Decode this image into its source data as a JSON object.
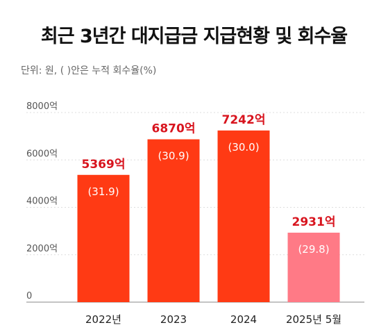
{
  "header": {
    "title": "최근 3년간 대지급금 지급현황 및 회수율",
    "unit_note": "단위: 원, (   )안은 누적 회수율(%)"
  },
  "colors": {
    "bar": "#ff3a14",
    "bar_partial": "#ff7a86",
    "value_label": "#d8141e",
    "axis": "#888888",
    "grid": "#dddddd"
  },
  "chart_data": {
    "type": "bar",
    "categories": [
      "2022년",
      "2023",
      "2024",
      "2025년 5월"
    ],
    "values": [
      5369,
      6870,
      7242,
      2931
    ],
    "value_labels": [
      "5369억",
      "6870억",
      "7242억",
      "2931억"
    ],
    "recovery_rates": [
      "(31.9)",
      "(30.9)",
      "(30.0)",
      "(29.8)"
    ],
    "yticks": [
      0,
      2000,
      4000,
      6000,
      8000
    ],
    "ytick_labels": [
      "0",
      "2000억",
      "4000억",
      "6000억",
      "8000억"
    ],
    "ylim": [
      0,
      8000
    ],
    "grid": true,
    "legend": "none"
  }
}
